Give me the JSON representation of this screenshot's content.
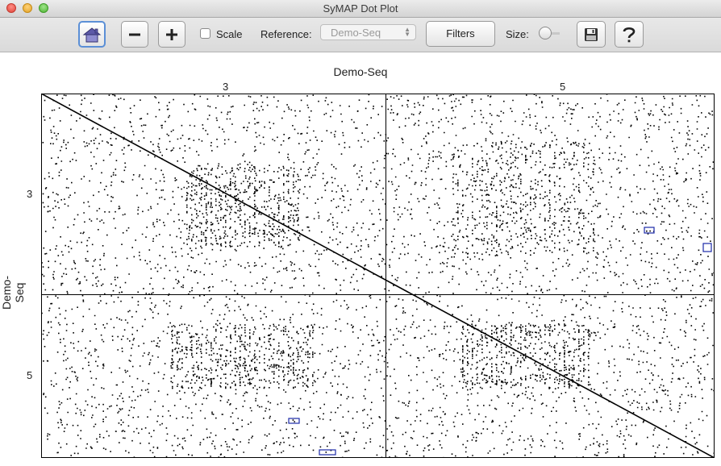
{
  "window": {
    "title": "SyMAP Dot Plot"
  },
  "toolbar": {
    "home_icon": "house-icon",
    "zoom_out_icon": "minus-icon",
    "zoom_in_icon": "plus-icon",
    "scale_label": "Scale",
    "scale_checked": false,
    "reference_label": "Reference:",
    "reference_value": "Demo-Seq",
    "filters_label": "Filters",
    "size_label": "Size:",
    "save_icon": "floppy-disk-icon",
    "help_icon": "question-mark-icon"
  },
  "plot": {
    "title": "Demo-Seq",
    "y_axis_label": "Demo-Seq",
    "x_blocks": [
      "3",
      "5"
    ],
    "y_blocks": [
      "3",
      "5"
    ],
    "boundary_fraction": 0.511,
    "colors": {
      "dots": "#000000",
      "highlight_box": "#1c2aa8",
      "grid": "#000000"
    }
  }
}
